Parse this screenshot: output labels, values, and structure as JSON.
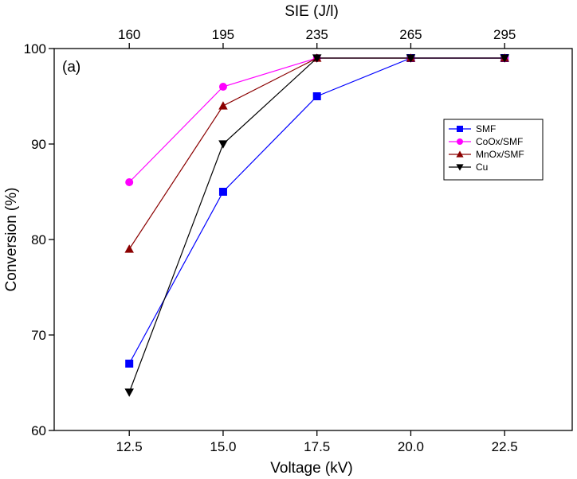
{
  "chart_data": {
    "type": "line",
    "panel_label": "(a)",
    "xlabel": "Voltage (kV)",
    "ylabel": "Conversion (%)",
    "x2label": "SIE (J/l)",
    "x": [
      12.5,
      15.0,
      17.5,
      20.0,
      22.5
    ],
    "xticks": [
      "12.5",
      "15.0",
      "17.5",
      "20.0",
      "22.5"
    ],
    "x2ticks": [
      "160",
      "195",
      "235",
      "265",
      "295"
    ],
    "xlim": [
      10.5,
      24.3
    ],
    "ylim": [
      60,
      100
    ],
    "yticks": [
      "60",
      "70",
      "80",
      "90",
      "100"
    ],
    "yticks_values": [
      60,
      70,
      80,
      90,
      100
    ],
    "grid": false,
    "legend_position": "upper-right",
    "series": [
      {
        "name": "SMF",
        "color": "#0000ff",
        "marker": "square",
        "values": [
          67,
          85,
          95,
          99,
          99
        ]
      },
      {
        "name": "CoOx/SMF",
        "color": "#ff00ff",
        "marker": "circle",
        "values": [
          86,
          96,
          99,
          99,
          99
        ]
      },
      {
        "name": "MnOx/SMF",
        "color": "#8b0000",
        "marker": "triangle-up",
        "values": [
          79,
          94,
          99,
          99,
          99
        ]
      },
      {
        "name": "Cu",
        "color": "#000000",
        "marker": "triangle-down",
        "values": [
          64,
          90,
          99,
          99,
          99
        ]
      }
    ]
  }
}
